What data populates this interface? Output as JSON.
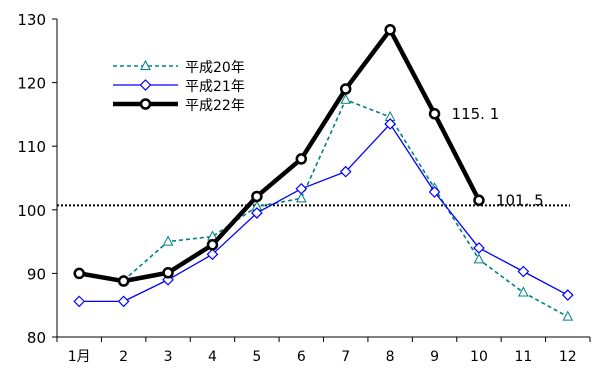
{
  "chart_data": {
    "type": "line",
    "categories": [
      "1月",
      "2",
      "3",
      "4",
      "5",
      "6",
      "7",
      "8",
      "9",
      "10",
      "11",
      "12"
    ],
    "ylim": [
      80,
      130
    ],
    "yticks": [
      "80",
      "90",
      "100",
      "110",
      "120",
      "130"
    ],
    "grid": false,
    "legend_position": "top-left",
    "reference_line": {
      "value": 100.7,
      "style": "dotted",
      "color": "#000000"
    },
    "series": [
      {
        "name": "平成20年",
        "color": "#008080",
        "line_style": "dashed",
        "marker": "triangle",
        "values": [
          null,
          88.9,
          95.0,
          95.8,
          100.5,
          101.8,
          117.3,
          114.6,
          103.4,
          92.2,
          87.0,
          83.2
        ]
      },
      {
        "name": "平成21年",
        "color": "#0000ff",
        "line_style": "solid",
        "marker": "diamond",
        "values": [
          85.6,
          85.6,
          89.0,
          93.0,
          99.5,
          103.3,
          106.0,
          113.5,
          102.8,
          94.0,
          90.3,
          86.6
        ]
      },
      {
        "name": "平成22年",
        "color": "#000000",
        "line_style": "thick",
        "marker": "circle",
        "values": [
          90.0,
          88.8,
          90.1,
          94.5,
          102.1,
          108.0,
          119.0,
          128.3,
          115.1,
          101.5,
          null,
          null
        ]
      }
    ],
    "annotations": [
      {
        "text": "115. 1",
        "category": "9",
        "value": 115.1
      },
      {
        "text": "101. 5",
        "category": "10",
        "value": 101.5
      }
    ]
  }
}
